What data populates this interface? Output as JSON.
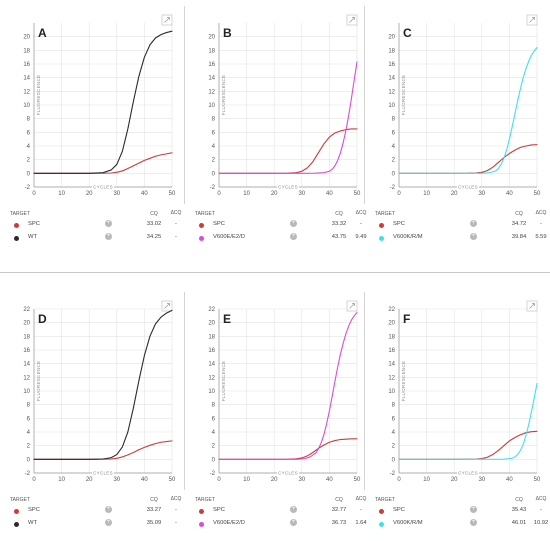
{
  "colors": {
    "spc": "#cf3a3a",
    "wt": "#2b2b2b",
    "v600e": "#d94bd9",
    "v600k": "#3fe0e8",
    "grid": "#e3e3e3",
    "axis": "#999999"
  },
  "table_headers": {
    "target": "TARGET",
    "cq": "CQ",
    "dcq": "ΔCQ"
  },
  "axes": {
    "ylabel": "FLUORESCENCE",
    "xlabel": "CYCLES"
  },
  "chart_data": [
    {
      "type": "line",
      "title": "A",
      "xlim": [
        0,
        50
      ],
      "ylim": [
        -2,
        22
      ],
      "xticks": [
        0,
        10,
        20,
        30,
        40,
        50
      ],
      "yticks": [
        -2,
        0,
        2,
        4,
        6,
        8,
        10,
        12,
        14,
        16,
        18,
        20
      ],
      "xlabel": "CYCLES",
      "ylabel": "FLUORESCENCE",
      "grid": true,
      "series": [
        {
          "name": "SPC",
          "color_key": "spc",
          "cq": "33.02",
          "dcq": "-",
          "x": [
            0,
            10,
            20,
            25,
            28,
            30,
            32,
            34,
            36,
            38,
            40,
            42,
            44,
            46,
            48,
            50
          ],
          "y": [
            0,
            0,
            0,
            0.02,
            0.05,
            0.15,
            0.35,
            0.7,
            1.1,
            1.5,
            1.9,
            2.2,
            2.5,
            2.7,
            2.85,
            3.0
          ]
        },
        {
          "name": "WT",
          "color_key": "wt",
          "cq": "34.25",
          "dcq": "-",
          "x": [
            0,
            10,
            20,
            25,
            28,
            30,
            32,
            34,
            36,
            38,
            40,
            42,
            44,
            46,
            48,
            50
          ],
          "y": [
            0,
            0,
            0,
            0.1,
            0.5,
            1.3,
            3.2,
            6.5,
            10.5,
            14.2,
            17.0,
            18.8,
            19.8,
            20.3,
            20.6,
            20.8
          ]
        }
      ]
    },
    {
      "type": "line",
      "title": "B",
      "xlim": [
        0,
        50
      ],
      "ylim": [
        -2,
        22
      ],
      "xticks": [
        0,
        10,
        20,
        30,
        40,
        50
      ],
      "yticks": [
        -2,
        0,
        2,
        4,
        6,
        8,
        10,
        12,
        14,
        16,
        18,
        20
      ],
      "xlabel": "CYCLES",
      "ylabel": "FLUORESCENCE",
      "grid": true,
      "series": [
        {
          "name": "SPC",
          "color_key": "spc",
          "cq": "33.32",
          "dcq": "-",
          "x": [
            0,
            10,
            20,
            25,
            28,
            30,
            32,
            34,
            36,
            38,
            40,
            42,
            44,
            46,
            48,
            50
          ],
          "y": [
            0,
            0,
            0,
            0.02,
            0.1,
            0.3,
            0.8,
            1.7,
            3.0,
            4.3,
            5.3,
            5.9,
            6.2,
            6.4,
            6.5,
            6.5
          ]
        },
        {
          "name": "V600E/E2/D",
          "color_key": "v600e",
          "cq": "43.75",
          "dcq": "9.49",
          "x": [
            0,
            10,
            20,
            30,
            35,
            38,
            40,
            41,
            42,
            43,
            44,
            45,
            46,
            47,
            48,
            49,
            50
          ],
          "y": [
            0,
            0,
            0,
            0,
            0.02,
            0.1,
            0.3,
            0.6,
            1.1,
            1.9,
            3.0,
            4.5,
            6.3,
            8.5,
            11.0,
            13.7,
            16.3
          ]
        }
      ]
    },
    {
      "type": "line",
      "title": "C",
      "xlim": [
        0,
        50
      ],
      "ylim": [
        -2,
        22
      ],
      "xticks": [
        0,
        10,
        20,
        30,
        40,
        50
      ],
      "yticks": [
        -2,
        0,
        2,
        4,
        6,
        8,
        10,
        12,
        14,
        16,
        18,
        20
      ],
      "xlabel": "CYCLES",
      "ylabel": "FLUORESCENCE",
      "grid": true,
      "series": [
        {
          "name": "SPC",
          "color_key": "spc",
          "cq": "34.72",
          "dcq": "-",
          "x": [
            0,
            10,
            20,
            25,
            28,
            30,
            32,
            34,
            36,
            38,
            40,
            42,
            44,
            46,
            48,
            50
          ],
          "y": [
            0,
            0,
            0,
            0.02,
            0.06,
            0.15,
            0.4,
            0.9,
            1.6,
            2.3,
            2.9,
            3.4,
            3.8,
            4.0,
            4.15,
            4.2
          ]
        },
        {
          "name": "V600K/R/M",
          "color_key": "v600k",
          "cq": "39.84",
          "dcq": "5.59",
          "x": [
            0,
            10,
            20,
            30,
            33,
            35,
            36,
            37,
            38,
            39,
            40,
            41,
            42,
            43,
            44,
            45,
            46,
            47,
            48,
            49,
            50
          ],
          "y": [
            0,
            0,
            0,
            0,
            0.1,
            0.35,
            0.7,
            1.3,
            2.2,
            3.4,
            5.0,
            6.8,
            8.7,
            10.6,
            12.4,
            14.0,
            15.3,
            16.4,
            17.3,
            17.9,
            18.4
          ]
        }
      ]
    },
    {
      "type": "line",
      "title": "D",
      "xlim": [
        0,
        50
      ],
      "ylim": [
        -2,
        22
      ],
      "xticks": [
        0,
        10,
        20,
        30,
        40,
        50
      ],
      "yticks": [
        -2,
        0,
        2,
        4,
        6,
        8,
        10,
        12,
        14,
        16,
        18,
        20,
        22
      ],
      "xlabel": "CYCLES",
      "ylabel": "FLUORESCENCE",
      "grid": true,
      "series": [
        {
          "name": "SPC",
          "color_key": "spc",
          "cq": "33.27",
          "dcq": "-",
          "x": [
            0,
            10,
            20,
            25,
            28,
            30,
            32,
            34,
            36,
            38,
            40,
            42,
            44,
            46,
            48,
            50
          ],
          "y": [
            0,
            0,
            0,
            0.02,
            0.05,
            0.15,
            0.35,
            0.65,
            1.0,
            1.4,
            1.75,
            2.05,
            2.3,
            2.5,
            2.6,
            2.7
          ]
        },
        {
          "name": "WT",
          "color_key": "wt",
          "cq": "35.09",
          "dcq": "-",
          "x": [
            0,
            10,
            20,
            25,
            28,
            30,
            32,
            34,
            36,
            38,
            40,
            42,
            44,
            46,
            48,
            50
          ],
          "y": [
            0,
            0,
            0,
            0.05,
            0.25,
            0.7,
            1.8,
            4.0,
            7.5,
            11.5,
            15.2,
            18.0,
            19.8,
            20.8,
            21.4,
            21.8
          ]
        }
      ]
    },
    {
      "type": "line",
      "title": "E",
      "xlim": [
        0,
        50
      ],
      "ylim": [
        -2,
        22
      ],
      "xticks": [
        0,
        10,
        20,
        30,
        40,
        50
      ],
      "yticks": [
        -2,
        0,
        2,
        4,
        6,
        8,
        10,
        12,
        14,
        16,
        18,
        20,
        22
      ],
      "xlabel": "CYCLES",
      "ylabel": "FLUORESCENCE",
      "grid": true,
      "series": [
        {
          "name": "SPC",
          "color_key": "spc",
          "cq": "32.77",
          "dcq": "-",
          "x": [
            0,
            10,
            20,
            25,
            28,
            30,
            32,
            34,
            36,
            38,
            40,
            42,
            44,
            46,
            48,
            50
          ],
          "y": [
            0,
            0,
            0,
            0.02,
            0.08,
            0.2,
            0.5,
            1.0,
            1.6,
            2.1,
            2.5,
            2.75,
            2.9,
            2.95,
            3.0,
            3.0
          ]
        },
        {
          "name": "V600E/E2/D",
          "color_key": "v600e",
          "cq": "36.73",
          "dcq": "1.64",
          "x": [
            0,
            10,
            20,
            28,
            31,
            33,
            35,
            36,
            37,
            38,
            39,
            40,
            41,
            42,
            43,
            44,
            45,
            46,
            47,
            48,
            49,
            50
          ],
          "y": [
            0,
            0,
            0,
            0,
            0.1,
            0.35,
            0.9,
            1.5,
            2.4,
            3.6,
            5.2,
            7.1,
            9.2,
            11.4,
            13.5,
            15.4,
            17.0,
            18.4,
            19.5,
            20.4,
            21.0,
            21.5
          ]
        }
      ]
    },
    {
      "type": "line",
      "title": "F",
      "xlim": [
        0,
        50
      ],
      "ylim": [
        -2,
        22
      ],
      "xticks": [
        0,
        10,
        20,
        30,
        40,
        50
      ],
      "yticks": [
        -2,
        0,
        2,
        4,
        6,
        8,
        10,
        12,
        14,
        16,
        18,
        20,
        22
      ],
      "xlabel": "CYCLES",
      "ylabel": "FLUORESCENCE",
      "grid": true,
      "series": [
        {
          "name": "SPC",
          "color_key": "spc",
          "cq": "35.43",
          "dcq": "-",
          "x": [
            0,
            10,
            20,
            25,
            28,
            30,
            32,
            34,
            36,
            38,
            40,
            42,
            44,
            46,
            48,
            50
          ],
          "y": [
            0,
            0,
            0,
            0.02,
            0.05,
            0.12,
            0.3,
            0.7,
            1.3,
            2.0,
            2.7,
            3.2,
            3.6,
            3.9,
            4.05,
            4.1
          ]
        },
        {
          "name": "V600K/R/M",
          "color_key": "v600k",
          "cq": "46.01",
          "dcq": "10.92",
          "x": [
            0,
            10,
            20,
            30,
            38,
            41,
            42,
            43,
            44,
            45,
            46,
            47,
            48,
            49,
            50
          ],
          "y": [
            0,
            0,
            0,
            0,
            0.02,
            0.15,
            0.35,
            0.7,
            1.3,
            2.2,
            3.5,
            5.1,
            7.0,
            9.0,
            11.1
          ]
        }
      ]
    }
  ]
}
